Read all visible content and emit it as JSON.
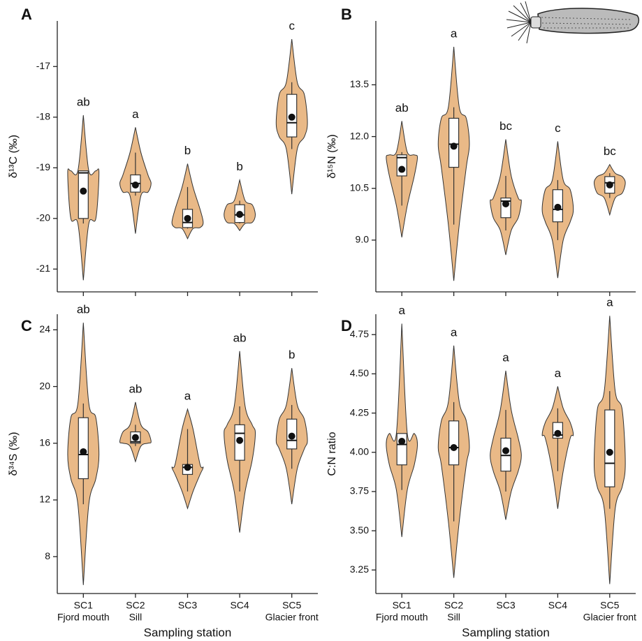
{
  "chart_data": [
    {
      "type": "violin",
      "panel": "A",
      "ylabel": "δ¹³C (‰)",
      "ylim": [
        -21.45,
        -16.1
      ],
      "yticks": [
        -21,
        -20,
        -19,
        -18,
        -17
      ],
      "group_labels": [
        "ab",
        "a",
        "b",
        "b",
        "c"
      ],
      "violin_min": [
        -21.22,
        -20.3,
        -20.4,
        -20.24,
        -19.52
      ],
      "violin_max": [
        -17.96,
        -18.2,
        -18.92,
        -19.24,
        -16.46
      ],
      "whisker_low": [
        -20.1,
        -19.55,
        -20.2,
        -20.1,
        -18.63
      ],
      "whisker_high": [
        -19.06,
        -18.7,
        -19.38,
        -19.65,
        -17.31
      ],
      "q1": [
        -20.0,
        -19.48,
        -20.18,
        -20.08,
        -18.39
      ],
      "median": [
        -19.1,
        -19.31,
        -20.08,
        -19.93,
        -18.11
      ],
      "q3": [
        -19.06,
        -19.14,
        -19.82,
        -19.73,
        -17.55
      ],
      "mean": [
        -19.46,
        -19.34,
        -20.0,
        -19.92,
        -18.0
      ],
      "color": "#e9b987"
    },
    {
      "type": "violin",
      "panel": "B",
      "ylabel": "δ¹⁵N (‰)",
      "ylim": [
        7.5,
        15.35
      ],
      "yticks": [
        {
          "value": 9,
          "label": "9.0"
        },
        10.5,
        {
          "value": 12,
          "label": "12.0"
        },
        13.5
      ],
      "group_labels": [
        "ab",
        "a",
        "bc",
        "c",
        "bc"
      ],
      "violin_min": [
        9.08,
        7.82,
        8.57,
        7.9,
        9.73
      ],
      "violin_max": [
        12.45,
        14.6,
        11.92,
        11.86,
        11.19
      ],
      "whisker_low": [
        10.0,
        9.45,
        9.28,
        9.0,
        10.22
      ],
      "whisker_high": [
        11.55,
        12.85,
        10.86,
        10.74,
        10.94
      ],
      "q1": [
        10.86,
        11.11,
        9.65,
        9.53,
        10.36
      ],
      "median": [
        11.39,
        11.78,
        10.13,
        9.89,
        10.66
      ],
      "q3": [
        11.47,
        12.53,
        10.22,
        10.46,
        10.84
      ],
      "mean": [
        11.05,
        11.72,
        10.05,
        9.95,
        10.6
      ],
      "color": "#e9b987"
    },
    {
      "type": "violin",
      "panel": "C",
      "ylabel": "δ³⁴S (‰)",
      "xlabel": "Sampling station",
      "categories": [
        "SC1",
        "SC2",
        "SC3",
        "SC4",
        "SC5"
      ],
      "category_sublabels": [
        "Fjord mouth",
        "Sill",
        null,
        null,
        "Glacier front"
      ],
      "ylim": [
        5.4,
        25.1
      ],
      "yticks": [
        8,
        12,
        16,
        20,
        24
      ],
      "group_labels": [
        "ab",
        "ab",
        "a",
        "ab",
        "b"
      ],
      "violin_min": [
        6.0,
        14.7,
        11.4,
        9.7,
        11.7
      ],
      "violin_max": [
        24.5,
        18.9,
        18.4,
        22.5,
        21.3
      ],
      "whisker_low": [
        11.7,
        15.8,
        12.6,
        12.6,
        14.2
      ],
      "whisker_high": [
        18.8,
        17.3,
        17.0,
        18.6,
        18.7
      ],
      "q1": [
        13.5,
        16.0,
        13.8,
        14.8,
        15.6
      ],
      "median": [
        15.2,
        16.1,
        14.3,
        16.7,
        16.2
      ],
      "q3": [
        17.8,
        16.8,
        14.5,
        17.3,
        17.7
      ],
      "mean": [
        15.4,
        16.4,
        14.3,
        16.2,
        16.5
      ],
      "color": "#e9b987"
    },
    {
      "type": "violin",
      "panel": "D",
      "ylabel": "C:N ratio",
      "xlabel": "Sampling station",
      "categories": [
        "SC1",
        "SC2",
        "SC3",
        "SC4",
        "SC5"
      ],
      "category_sublabels": [
        "Fjord mouth",
        "Sill",
        null,
        null,
        "Glacier front"
      ],
      "ylim": [
        3.1,
        4.88
      ],
      "yticks": [
        3.25,
        {
          "value": 3.5,
          "label": "3.50"
        },
        3.75,
        {
          "value": 4,
          "label": "4.00"
        },
        4.25,
        {
          "value": 4.5,
          "label": "4.50"
        },
        4.75
      ],
      "group_labels": [
        "a",
        "a",
        "a",
        "a",
        "a"
      ],
      "violin_min": [
        3.46,
        3.2,
        3.57,
        3.64,
        3.16
      ],
      "violin_max": [
        4.82,
        4.68,
        4.52,
        4.42,
        4.87
      ],
      "whisker_low": [
        3.76,
        3.56,
        3.75,
        3.88,
        3.64
      ],
      "whisker_high": [
        4.12,
        4.32,
        4.27,
        4.28,
        4.39
      ],
      "q1": [
        3.92,
        3.92,
        3.88,
        4.09,
        3.78
      ],
      "median": [
        4.05,
        4.03,
        3.98,
        4.11,
        3.93
      ],
      "q3": [
        4.12,
        4.2,
        4.09,
        4.19,
        4.27
      ],
      "mean": [
        4.07,
        4.03,
        4.01,
        4.12,
        4.0
      ],
      "color": "#e9b987"
    }
  ]
}
